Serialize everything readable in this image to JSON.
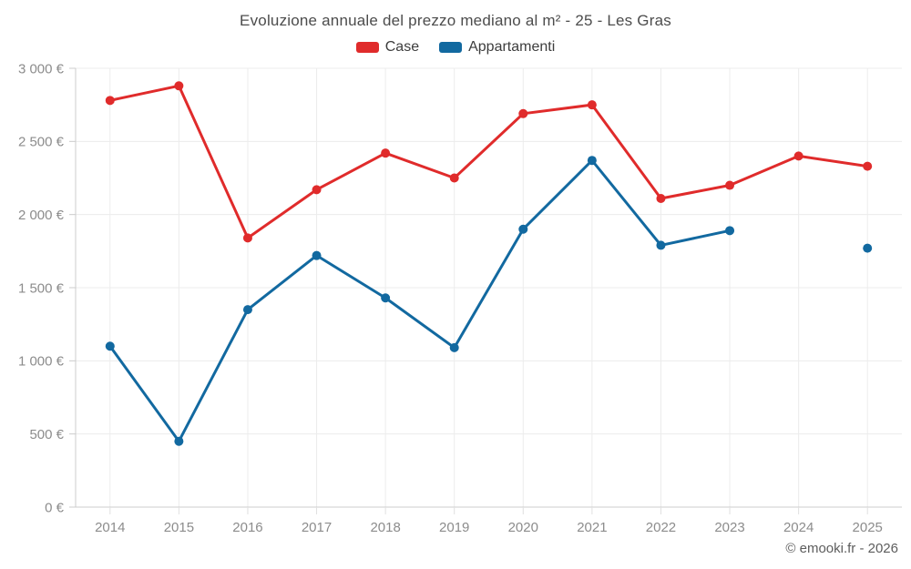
{
  "title": "Evoluzione annuale del prezzo mediano al m² - 25 - Les Gras",
  "legend": [
    {
      "label": "Case",
      "color": "#e02b2b"
    },
    {
      "label": "Appartamenti",
      "color": "#1269a0"
    }
  ],
  "watermark": "© emooki.fr - 2026",
  "chart_data": {
    "type": "line",
    "title": "Evoluzione annuale del prezzo mediano al m² - 25 - Les Gras",
    "categories": [
      "2014",
      "2015",
      "2016",
      "2017",
      "2018",
      "2019",
      "2020",
      "2021",
      "2022",
      "2023",
      "2024",
      "2025"
    ],
    "series": [
      {
        "name": "Case",
        "color": "#e02b2b",
        "values": [
          2780,
          2880,
          1840,
          2170,
          2420,
          2250,
          2690,
          2750,
          2110,
          2200,
          2400,
          2330
        ]
      },
      {
        "name": "Appartamenti",
        "color": "#1269a0",
        "values": [
          1100,
          450,
          1350,
          1720,
          1430,
          1090,
          1900,
          2370,
          1790,
          1890,
          null,
          1770
        ]
      }
    ],
    "xlabel": "",
    "ylabel": "",
    "unit": "€",
    "ylim": [
      0,
      3000
    ],
    "ytick_step": 500,
    "ytick_labels": [
      "0 €",
      "500 €",
      "1 000 €",
      "1 500 €",
      "2 000 €",
      "2 500 €",
      "3 000 €"
    ],
    "grid": true,
    "legend_position": "top"
  },
  "colors": {
    "grid": "#ececec",
    "axis": "#cccccc",
    "x_tick": "#e0e0e0",
    "tick_label": "#8c8c8c",
    "background": "#ffffff"
  }
}
